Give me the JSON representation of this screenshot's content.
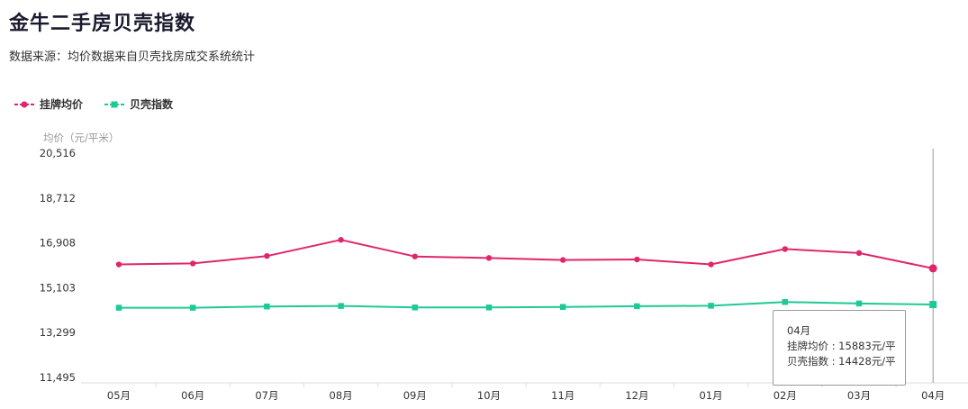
{
  "header": {
    "title": "金牛二手房贝壳指数",
    "subtitle": "数据来源：均价数据来自贝壳找房成交系统统计"
  },
  "colors": {
    "listing": "#e0266a",
    "index": "#1ec995",
    "axis": "#dddddd",
    "cursor": "#999999"
  },
  "tooltip": {
    "title": "04月",
    "listing_label": "挂牌均价 : 15883元/平",
    "index_label": "贝壳指数 : 14428元/平"
  },
  "chart_data": {
    "type": "line",
    "ylabel": "均价（元/平米）",
    "ylim": [
      11495,
      20516
    ],
    "yticks": [
      "20,516",
      "18,712",
      "16,908",
      "15,103",
      "13,299",
      "11,495"
    ],
    "ytick_values": [
      20516,
      18712,
      16908,
      15103,
      13299,
      11495
    ],
    "categories": [
      "05月",
      "06月",
      "07月",
      "08月",
      "09月",
      "10月",
      "11月",
      "12月",
      "01月",
      "02月",
      "03月",
      "04月"
    ],
    "series": [
      {
        "name": "挂牌均价",
        "marker": "circle",
        "values": [
          16040,
          16080,
          16380,
          17030,
          16360,
          16300,
          16220,
          16240,
          16040,
          16660,
          16500,
          15883
        ]
      },
      {
        "name": "贝壳指数",
        "marker": "square",
        "values": [
          14300,
          14300,
          14350,
          14370,
          14310,
          14310,
          14330,
          14360,
          14380,
          14530,
          14470,
          14428
        ]
      }
    ],
    "legend_position": "top-left",
    "grid": false,
    "cursor_category": "04月"
  }
}
